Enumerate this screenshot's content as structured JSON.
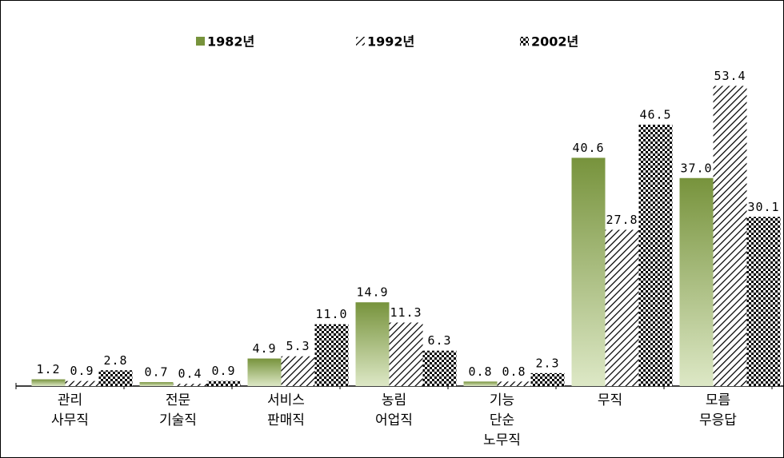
{
  "chart_data": {
    "type": "bar",
    "categories": [
      [
        "관리",
        "사무직"
      ],
      [
        "전문",
        "기술직"
      ],
      [
        "서비스",
        "판매직"
      ],
      [
        "농림",
        "어업직"
      ],
      [
        "기능",
        "단순",
        "노무직"
      ],
      [
        "무직"
      ],
      [
        "모름",
        "무응답"
      ]
    ],
    "series": [
      {
        "name": "1982년",
        "color": "#77933c",
        "values": [
          1.2,
          0.7,
          4.9,
          14.9,
          0.8,
          40.6,
          37.0
        ],
        "value_labels": [
          "1.2",
          "0.7",
          "4.9",
          "14.9",
          "0.8",
          "40.6",
          "37.0"
        ]
      },
      {
        "name": "1992년",
        "color": "#000000",
        "values": [
          0.9,
          0.4,
          5.3,
          11.3,
          0.8,
          27.8,
          53.4
        ],
        "value_labels": [
          "0.9",
          "0.4",
          "5.3",
          "11.3",
          "0.8",
          "27.8",
          "53.4"
        ]
      },
      {
        "name": "2002년",
        "color": "#000000",
        "values": [
          2.8,
          0.9,
          11.0,
          6.3,
          2.3,
          46.5,
          30.1
        ],
        "value_labels": [
          "2.8",
          "0.9",
          "11.0",
          "6.3",
          "2.3",
          "46.5",
          "30.1"
        ]
      }
    ],
    "ylim": [
      0,
      60
    ]
  }
}
